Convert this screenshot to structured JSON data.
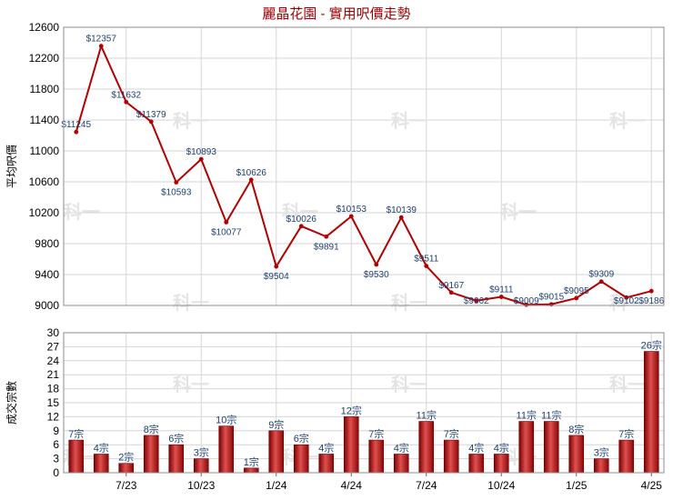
{
  "chart_data": {
    "title": "麗晶花園 - 實用呎價走勢",
    "x_tick_labels": [
      "7/23",
      "10/23",
      "1/24",
      "4/24",
      "7/24",
      "10/24",
      "1/25",
      "4/25"
    ],
    "price": {
      "type": "line",
      "ylabel": "平均呎價",
      "ylim": [
        9000,
        12600
      ],
      "yticks": [
        9000,
        9400,
        9800,
        10200,
        10600,
        11000,
        11400,
        11800,
        12200,
        12600
      ],
      "color": "#b30000",
      "values": [
        11245,
        12357,
        11632,
        11379,
        10593,
        10893,
        10077,
        10626,
        9504,
        10026,
        9891,
        10153,
        9530,
        10139,
        9511,
        9167,
        9062,
        9111,
        9009,
        9015,
        9095,
        9309,
        9102,
        9186
      ],
      "labels": [
        "$11245",
        "$12357",
        "$11632",
        "$11379",
        "$10593",
        "$10893",
        "$10077",
        "$10626",
        "$9504",
        "$10026",
        "$9891",
        "$10153",
        "$9530",
        "$10139",
        "$9511",
        "$9167",
        "$9062",
        "$9111",
        "$9009",
        "$9015",
        "$9095",
        "$9309",
        "$9102",
        "$9186"
      ]
    },
    "volume": {
      "type": "bar",
      "ylabel": "成交宗數",
      "ylim": [
        0,
        30
      ],
      "yticks": [
        0,
        3,
        6,
        9,
        12,
        15,
        18,
        21,
        24,
        27,
        30
      ],
      "color": "#b31414",
      "values": [
        7,
        4,
        2,
        8,
        6,
        3,
        10,
        1,
        9,
        6,
        4,
        12,
        7,
        4,
        11,
        7,
        4,
        4,
        11,
        11,
        8,
        3,
        7,
        26
      ],
      "labels": [
        "7宗",
        "4宗",
        "2宗",
        "8宗",
        "6宗",
        "3宗",
        "10宗",
        "1宗",
        "9宗",
        "6宗",
        "4宗",
        "12宗",
        "7宗",
        "4宗",
        "11宗",
        "7宗",
        "4宗",
        "4宗",
        "11宗",
        "11宗",
        "8宗",
        "3宗",
        "7宗",
        "26宗"
      ]
    }
  },
  "watermark": "科一"
}
